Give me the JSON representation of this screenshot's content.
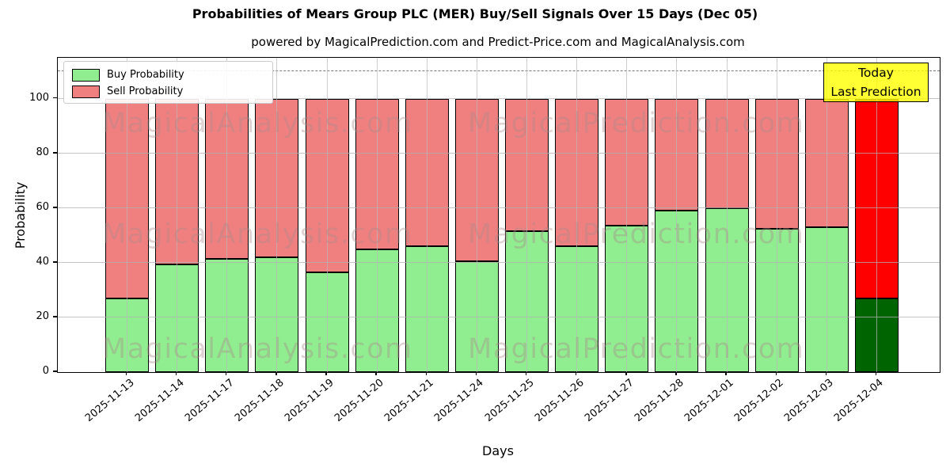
{
  "title": "Probabilities of Mears Group PLC (MER) Buy/Sell Signals Over 15 Days (Dec 05)",
  "subtitle": "powered by MagicalPrediction.com and Predict-Price.com and MagicalAnalysis.com",
  "annotation": {
    "line1": "Today",
    "line2": "Last Prediction",
    "bg_color": "#FFFF00",
    "border_color": "#000000"
  },
  "watermark": {
    "left_text": "MagicalAnalysis.com",
    "right_text": "MagicalPrediction.com"
  },
  "legend": {
    "items": [
      {
        "label": "Buy Probability",
        "color": "#90EE90"
      },
      {
        "label": "Sell Probability",
        "color": "#F08080"
      }
    ]
  },
  "chart_data": {
    "type": "bar",
    "stacked": true,
    "title": "Probabilities of Mears Group PLC (MER) Buy/Sell Signals Over 15 Days (Dec 05)",
    "xlabel": "Days",
    "ylabel": "Probability",
    "ylim": [
      0,
      115
    ],
    "yticks": [
      0,
      20,
      40,
      60,
      80,
      100
    ],
    "threshold_dashed_line_y": 110,
    "grid": true,
    "legend_position": "upper left",
    "categories": [
      "2025-11-13",
      "2025-11-14",
      "2025-11-17",
      "2025-11-18",
      "2025-11-19",
      "2025-11-20",
      "2025-11-21",
      "2025-11-24",
      "2025-11-25",
      "2025-11-26",
      "2025-11-27",
      "2025-11-28",
      "2025-12-01",
      "2025-12-02",
      "2025-12-03",
      "2025-12-04"
    ],
    "series": [
      {
        "name": "Buy Probability",
        "color": "#90EE90",
        "values": [
          27,
          39.5,
          41.5,
          42,
          36.5,
          45,
          46,
          40.5,
          51.5,
          46,
          53.5,
          59,
          60,
          52.5,
          53,
          27
        ]
      },
      {
        "name": "Sell Probability",
        "color": "#F08080",
        "values": [
          73,
          60.5,
          58.5,
          58,
          63.5,
          55,
          54,
          59.5,
          48.5,
          54,
          46.5,
          41,
          40,
          47.5,
          47,
          73
        ]
      }
    ],
    "highlight_last_bar": {
      "buy_color": "#006400",
      "sell_color": "#FF0000",
      "note": "Today / Last Prediction"
    }
  }
}
